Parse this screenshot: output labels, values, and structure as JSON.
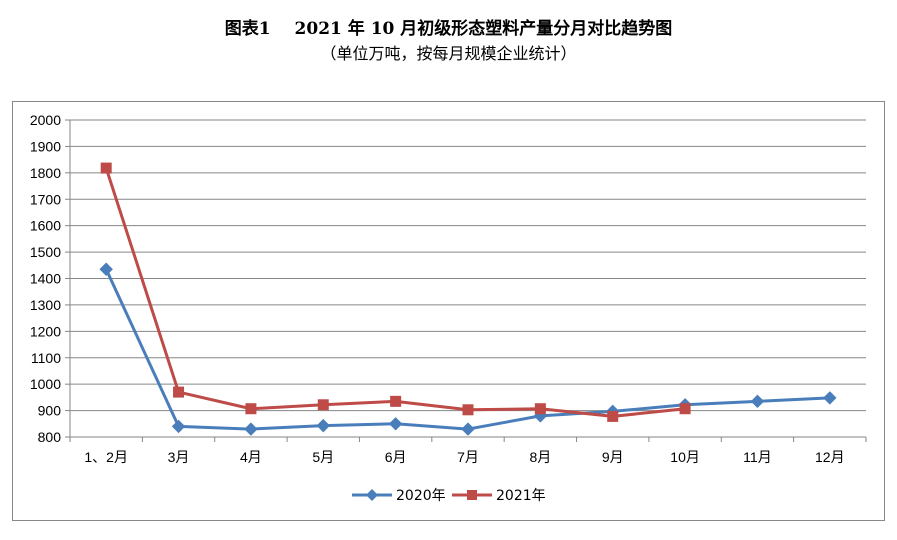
{
  "header": {
    "title_label": "图表1",
    "title_main": "2021 年 10 月初级形态塑料产量分月对比趋势图",
    "subtitle": "（单位万吨，按每月规模企业统计）"
  },
  "chart_data": {
    "type": "line",
    "categories": [
      "1、2月",
      "3月",
      "4月",
      "5月",
      "6月",
      "7月",
      "8月",
      "9月",
      "10月",
      "11月",
      "12月"
    ],
    "series": [
      {
        "name": "2020年",
        "color": "#4a7ebb",
        "marker": "diamond",
        "values": [
          1435,
          840,
          830,
          843,
          850,
          830,
          880,
          897,
          922,
          935,
          948
        ]
      },
      {
        "name": "2021年",
        "color": "#be4b48",
        "marker": "square",
        "values": [
          1818,
          970,
          907,
          922,
          935,
          903,
          907,
          878,
          907,
          null,
          null
        ]
      }
    ],
    "yticks": [
      800,
      900,
      1000,
      1100,
      1200,
      1300,
      1400,
      1500,
      1600,
      1700,
      1800,
      1900,
      2000
    ],
    "ylim": [
      800,
      2000
    ],
    "grid": true,
    "legend_position": "bottom"
  }
}
